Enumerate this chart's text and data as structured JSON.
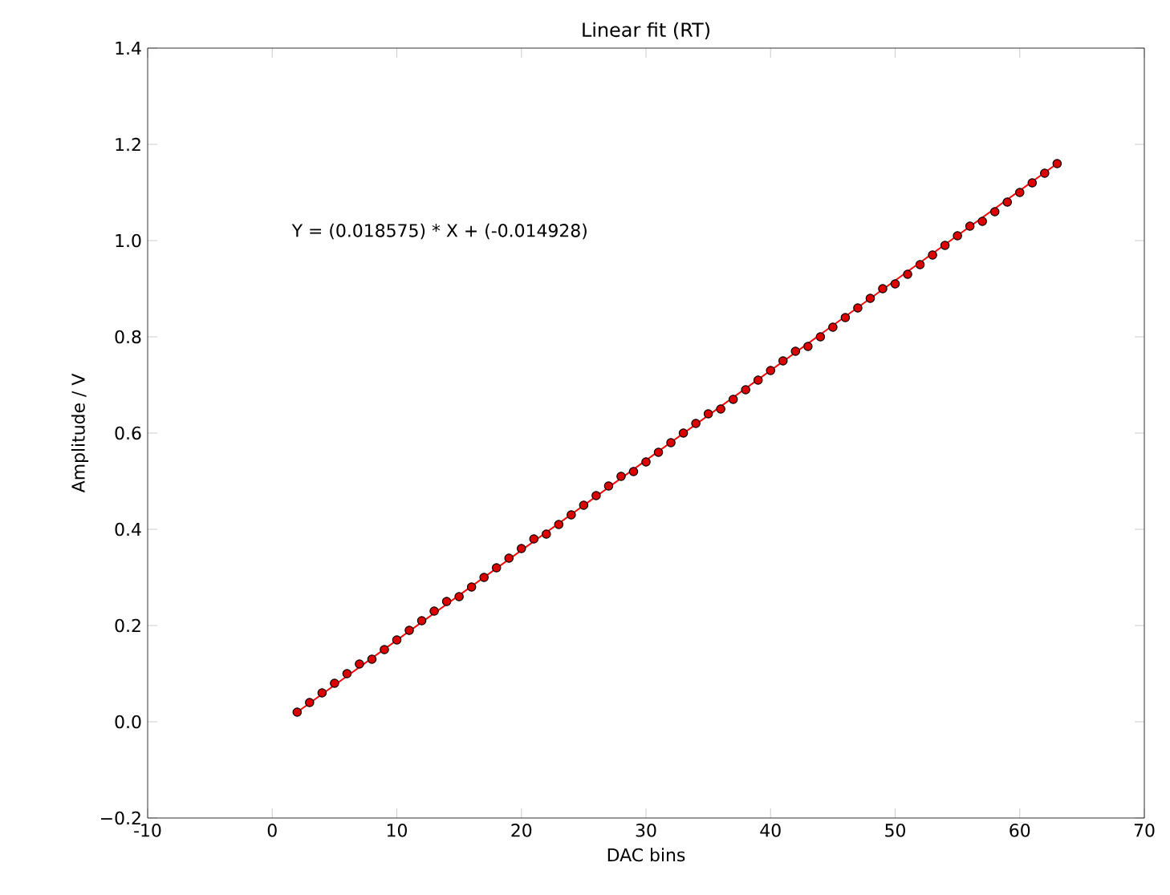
{
  "chart_data": {
    "type": "scatter",
    "title": "Linear fit (RT)",
    "xlabel": "DAC bins",
    "ylabel": "Amplitude / V",
    "xlim": [
      -10,
      70
    ],
    "xticks": [
      -10,
      0,
      10,
      20,
      30,
      40,
      50,
      60,
      70
    ],
    "ylim": [
      -0.2,
      1.4
    ],
    "yticks": [
      {
        "value": -0.2,
        "label": "−0.2"
      },
      {
        "value": 0.0,
        "label": "0.0"
      },
      {
        "value": 0.2,
        "label": "0.2"
      },
      {
        "value": 0.4,
        "label": "0.4"
      },
      {
        "value": 0.6,
        "label": "0.6"
      },
      {
        "value": 0.8,
        "label": "0.8"
      },
      {
        "value": 1.0,
        "label": "1.0"
      },
      {
        "value": 1.2,
        "label": "1.2"
      },
      {
        "value": 1.4,
        "label": "1.4"
      }
    ],
    "grid": false,
    "annotations": [
      "Y = (0.018575) * X + (-0.014928)"
    ],
    "series": [
      {
        "type": "line",
        "color": "#ff0000",
        "line_style": "solid",
        "x": [
          2,
          63
        ],
        "values": [
          0.02,
          1.16
        ]
      },
      {
        "color": "#dd0000",
        "marker": "circle",
        "x": [
          2,
          3,
          4,
          5,
          6,
          7,
          8,
          9,
          10,
          11,
          12,
          13,
          14,
          15,
          16,
          17,
          18,
          19,
          20,
          21,
          22,
          23,
          24,
          25,
          26,
          27,
          28,
          29,
          30,
          31,
          32,
          33,
          34,
          35,
          36,
          37,
          38,
          39,
          40,
          41,
          42,
          43,
          44,
          45,
          46,
          47,
          48,
          49,
          50,
          51,
          52,
          53,
          54,
          55,
          56,
          57,
          58,
          59,
          60,
          61,
          62,
          63
        ],
        "values": [
          0.02,
          0.04,
          0.06,
          0.08,
          0.1,
          0.12,
          0.13,
          0.15,
          0.17,
          0.19,
          0.21,
          0.23,
          0.25,
          0.26,
          0.28,
          0.3,
          0.32,
          0.34,
          0.36,
          0.38,
          0.39,
          0.41,
          0.43,
          0.45,
          0.47,
          0.49,
          0.51,
          0.52,
          0.54,
          0.56,
          0.58,
          0.6,
          0.62,
          0.64,
          0.65,
          0.67,
          0.69,
          0.71,
          0.73,
          0.75,
          0.77,
          0.78,
          0.8,
          0.82,
          0.84,
          0.86,
          0.88,
          0.9,
          0.91,
          0.93,
          0.95,
          0.97,
          0.99,
          1.01,
          1.03,
          1.04,
          1.06,
          1.08,
          1.1,
          1.12,
          1.14,
          1.16
        ]
      }
    ]
  }
}
